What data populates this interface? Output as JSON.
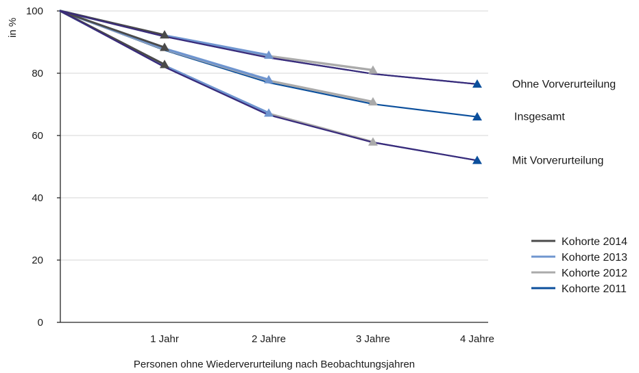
{
  "chart_data": {
    "type": "line",
    "title": "",
    "xlabel": "Personen ohne Wiederverurteilung nach Beobachtungsjahren",
    "ylabel": "in %",
    "x": [
      0,
      1,
      2,
      3,
      4
    ],
    "x_tick_labels": [
      "1 Jahr",
      "2 Jahre",
      "3 Jahre",
      "4 Jahre"
    ],
    "y_ticks": [
      0,
      20,
      40,
      60,
      80,
      100
    ],
    "ylim": [
      0,
      100
    ],
    "grid": true,
    "legend_position": "right",
    "group_labels": [
      {
        "text": "Ohne Vorverurteilung",
        "y": 76.5
      },
      {
        "text": "Insgesamt",
        "y": 66
      },
      {
        "text": "Mit Vorverurteilung",
        "y": 52
      }
    ],
    "series": [
      {
        "name": "Kohorte 2014",
        "color": "#4a4a4a",
        "width": 3,
        "groups": [
          [
            100,
            92.3
          ],
          [
            100,
            88.3
          ],
          [
            100,
            82.8
          ]
        ]
      },
      {
        "name": "Kohorte 2013",
        "color": "#6f95cf",
        "width": 3.5,
        "groups": [
          [
            100,
            92.1,
            85.8
          ],
          [
            100,
            87.9,
            77.9
          ],
          [
            100,
            82.4,
            67.2
          ]
        ]
      },
      {
        "name": "Kohorte 2012",
        "color": "#aaaaaa",
        "width": 3.5,
        "groups": [
          [
            100,
            92.0,
            85.5,
            81.0
          ],
          [
            100,
            87.7,
            77.6,
            70.8
          ],
          [
            100,
            82.3,
            67.0,
            57.9
          ]
        ]
      },
      {
        "name": "Kohorte 2011",
        "color": "#0b4f9c",
        "width": 2.2,
        "groups": [
          [
            100,
            91.8,
            85.0,
            79.8,
            76.5
          ],
          [
            100,
            87.4,
            77.0,
            70.1,
            66.0
          ],
          [
            100,
            82.0,
            66.6,
            57.8,
            52.0
          ]
        ]
      }
    ],
    "extra_line": {
      "color": "#3a2a7a",
      "width": 2.2,
      "groups": [
        [
          100,
          91.8,
          85.0,
          79.8,
          76.5
        ],
        [
          100,
          82.0,
          66.6,
          57.8,
          52.0
        ]
      ]
    }
  }
}
